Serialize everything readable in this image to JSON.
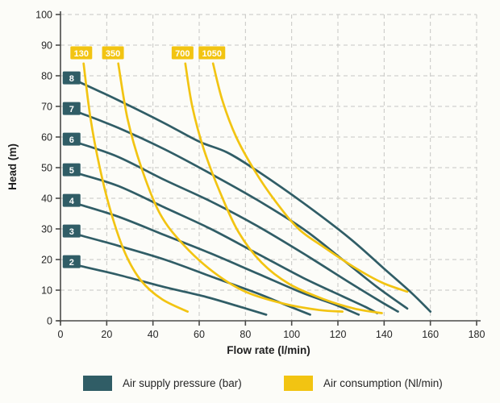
{
  "chart": {
    "xlabel": "Flow rate (l/min)",
    "ylabel": "Head (m)"
  },
  "chart_data": {
    "type": "line",
    "title": "",
    "xlabel": "Flow rate (l/min)",
    "ylabel": "Head (m)",
    "xlim": [
      0,
      180
    ],
    "ylim": [
      0,
      100
    ],
    "xticks": [
      0,
      20,
      40,
      60,
      80,
      100,
      120,
      140,
      160,
      180
    ],
    "yticks": [
      0,
      10,
      20,
      30,
      40,
      50,
      60,
      70,
      80,
      90,
      100
    ],
    "grid": true,
    "legend_position": "bottom",
    "colors": {
      "pressure": "#305d66",
      "consumption": "#f2c412",
      "grid": "#c6c6c3",
      "axis": "#4a4a48",
      "text": "#262626"
    },
    "series": [
      {
        "group": "pressure",
        "label": "2",
        "label_pos": [
          4.8,
          19.3
        ],
        "points": [
          [
            8,
            18
          ],
          [
            25,
            15
          ],
          [
            45,
            11
          ],
          [
            62,
            8
          ],
          [
            78,
            4.5
          ],
          [
            89,
            2
          ]
        ]
      },
      {
        "group": "pressure",
        "label": "3",
        "label_pos": [
          4.8,
          29.3
        ],
        "points": [
          [
            8,
            28
          ],
          [
            25,
            24.5
          ],
          [
            45,
            20
          ],
          [
            65,
            14.5
          ],
          [
            85,
            9
          ],
          [
            98,
            5
          ],
          [
            108,
            2
          ]
        ]
      },
      {
        "group": "pressure",
        "label": "4",
        "label_pos": [
          4.8,
          39.3
        ],
        "points": [
          [
            8,
            38
          ],
          [
            25,
            34
          ],
          [
            45,
            28
          ],
          [
            65,
            22
          ],
          [
            85,
            15.5
          ],
          [
            105,
            9
          ],
          [
            118,
            5.5
          ],
          [
            129,
            2
          ]
        ]
      },
      {
        "group": "pressure",
        "label": "5",
        "label_pos": [
          4.8,
          49.3
        ],
        "points": [
          [
            8,
            48
          ],
          [
            25,
            44
          ],
          [
            45,
            37
          ],
          [
            65,
            30
          ],
          [
            85,
            22
          ],
          [
            105,
            14
          ],
          [
            122,
            8
          ],
          [
            132,
            4.5
          ],
          [
            137,
            2.5
          ]
        ]
      },
      {
        "group": "pressure",
        "label": "6",
        "label_pos": [
          4.8,
          59.3
        ],
        "points": [
          [
            8,
            58
          ],
          [
            25,
            53.5
          ],
          [
            45,
            46
          ],
          [
            65,
            39
          ],
          [
            85,
            31
          ],
          [
            105,
            22
          ],
          [
            125,
            12.5
          ],
          [
            138,
            6.5
          ],
          [
            146,
            3
          ]
        ]
      },
      {
        "group": "pressure",
        "label": "7",
        "label_pos": [
          4.8,
          69.3
        ],
        "points": [
          [
            8,
            68
          ],
          [
            25,
            63
          ],
          [
            45,
            56
          ],
          [
            65,
            48
          ],
          [
            85,
            39.5
          ],
          [
            105,
            30
          ],
          [
            122,
            20
          ],
          [
            137,
            11
          ],
          [
            150,
            4
          ]
        ]
      },
      {
        "group": "pressure",
        "label": "8",
        "label_pos": [
          4.8,
          79.3
        ],
        "points": [
          [
            8,
            78
          ],
          [
            25,
            72
          ],
          [
            45,
            64.5
          ],
          [
            60,
            58.5
          ],
          [
            72,
            55
          ],
          [
            85,
            49
          ],
          [
            105,
            38.5
          ],
          [
            125,
            27
          ],
          [
            140,
            17
          ],
          [
            152,
            9
          ],
          [
            160,
            3
          ]
        ]
      },
      {
        "group": "consumption",
        "label": "130",
        "label_pos": [
          9,
          87.5
        ],
        "points": [
          [
            10,
            84
          ],
          [
            13,
            66
          ],
          [
            17,
            50
          ],
          [
            22,
            35
          ],
          [
            28,
            22
          ],
          [
            35,
            13
          ],
          [
            44,
            7
          ],
          [
            55,
            3
          ]
        ]
      },
      {
        "group": "consumption",
        "label": "350",
        "label_pos": [
          22.7,
          87.5
        ],
        "points": [
          [
            25,
            84
          ],
          [
            29,
            66
          ],
          [
            35,
            50
          ],
          [
            43,
            35
          ],
          [
            53,
            25
          ],
          [
            66,
            16
          ],
          [
            80,
            9.5
          ],
          [
            97,
            5.5
          ],
          [
            112,
            3.5
          ],
          [
            122,
            3
          ]
        ]
      },
      {
        "group": "consumption",
        "label": "700",
        "label_pos": [
          52.8,
          87.5
        ],
        "points": [
          [
            54,
            84
          ],
          [
            57,
            70
          ],
          [
            62,
            56
          ],
          [
            69,
            42
          ],
          [
            77,
            29
          ],
          [
            87,
            19
          ],
          [
            99,
            12
          ],
          [
            114,
            7
          ],
          [
            127,
            4
          ],
          [
            139,
            2.5
          ]
        ]
      },
      {
        "group": "consumption",
        "label": "1050",
        "label_pos": [
          65.5,
          87.5
        ],
        "points": [
          [
            66,
            84
          ],
          [
            70,
            72
          ],
          [
            76,
            60
          ],
          [
            84,
            49
          ],
          [
            93,
            39
          ],
          [
            103,
            30
          ],
          [
            114,
            24
          ],
          [
            127,
            17.5
          ],
          [
            139,
            12.5
          ],
          [
            150,
            9.5
          ]
        ]
      }
    ],
    "legend": [
      {
        "label": "Air supply pressure (bar)",
        "color": "#305d66",
        "group": "pressure"
      },
      {
        "label": "Air consumption (Nl/min)",
        "color": "#f2c412",
        "group": "consumption"
      }
    ]
  }
}
